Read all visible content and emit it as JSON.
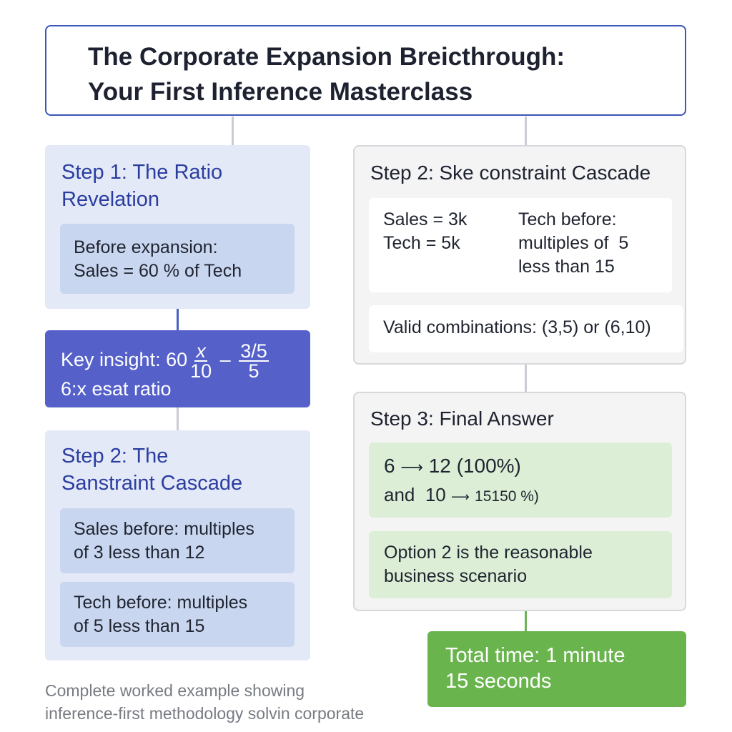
{
  "title": {
    "line1": "The Corporate Expansion Breicthrough:",
    "line2": "Your First Inference Masterclass"
  },
  "step1": {
    "title_line1": "Step 1: The Ratio",
    "title_line2": "Revelation",
    "box_line1": "Before expansion:",
    "box_line2": "Sales = 60 % of Tech"
  },
  "insight": {
    "prefix": "Key insight: 60",
    "frac1_num": "x",
    "frac1_den": "10",
    "dash": "–",
    "frac2_num": "3/5",
    "frac2_den": "5",
    "line2": "6:x esat ratio"
  },
  "left_step2": {
    "title_line1": "Step 2: The",
    "title_line2": "Sanstraint Cascade",
    "box1_line1": "Sales before: multiples",
    "box1_line2": "of 3 less than 12",
    "box2_line1": "Tech before: multiples",
    "box2_line2": "of 5 less than 15"
  },
  "right_step2": {
    "title": "Step 2: Ske constraint Cascade",
    "col1_line1": "Sales = 3k",
    "col1_line2": "Tech = 5k",
    "col2_line1": "Tech before:",
    "col2_line2": "multiples of  5",
    "col2_line3": "less than 15",
    "valid": "Valid combinations: (3,5) or (6,10)"
  },
  "step3": {
    "title": "Step 3: Final Answer",
    "ans1_a": "6",
    "ans1_b": "12 (100%)",
    "ans2_a": "and  10",
    "ans2_b": "15150 %)",
    "option": "Option 2 is the reasonable",
    "option_line2": "business scenario"
  },
  "total": {
    "line1": "Total time: 1 minute",
    "line2": "15 seconds"
  },
  "caption": {
    "line1": "Complete worked example showing",
    "line2": "inference-first methodology solvin corporate"
  }
}
